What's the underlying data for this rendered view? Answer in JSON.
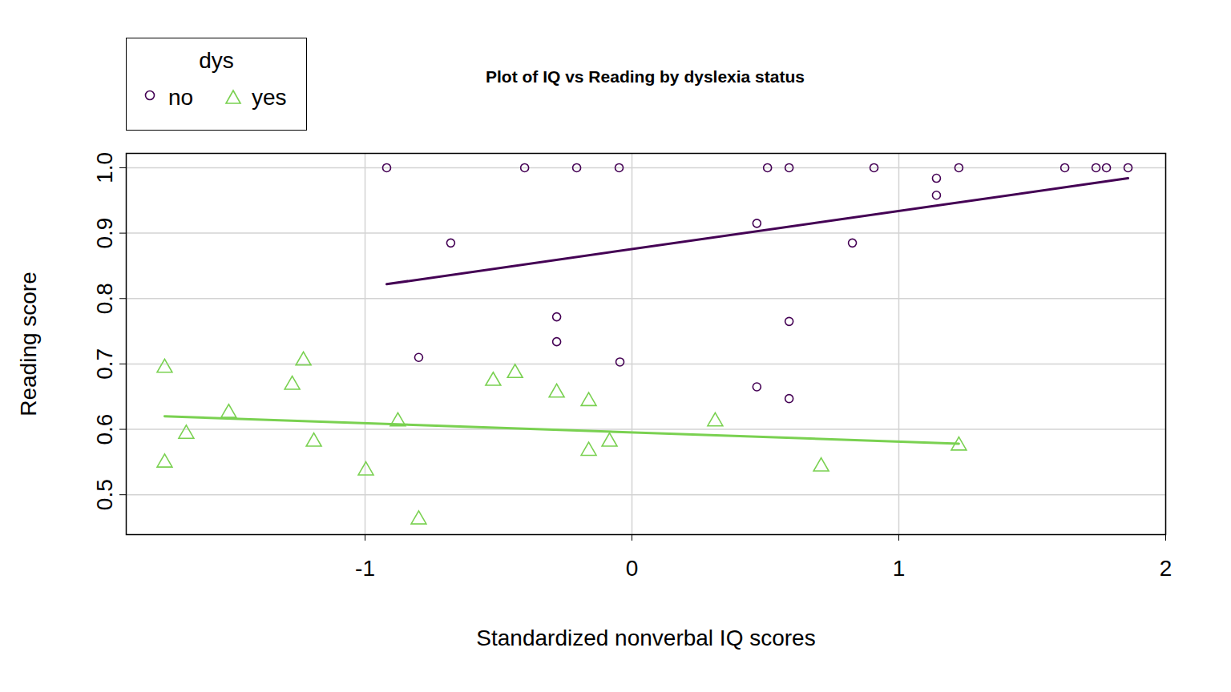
{
  "chart_data": {
    "type": "scatter",
    "title": "Plot of IQ vs Reading by dyslexia status",
    "x_label": "Standardized nonverbal IQ scores",
    "y_label": "Reading score",
    "xlim": [
      -1.895,
      2.0
    ],
    "ylim": [
      0.439,
      1.022
    ],
    "xticks": [
      -1,
      0,
      1,
      2
    ],
    "yticks": [
      0.5,
      0.6,
      0.7,
      0.8,
      0.9,
      {
        "value": 1,
        "label": "1.0"
      }
    ],
    "grid": true,
    "legend": "top-left",
    "legend_title": "dys",
    "series": [
      {
        "name": "no",
        "color": "#440154",
        "marker": "circle",
        "x": [
          -0.919,
          -0.679,
          -0.402,
          -0.207,
          -0.048,
          -0.799,
          -0.282,
          -0.282,
          -0.045,
          0.468,
          0.508,
          0.589,
          0.468,
          0.589,
          0.589,
          0.826,
          0.907,
          1.141,
          1.141,
          1.225,
          1.622,
          1.739,
          1.778,
          1.859
        ],
        "values": [
          1.0,
          0.885,
          1.0,
          1.0,
          1.0,
          0.71,
          0.772,
          0.734,
          0.703,
          0.915,
          1.0,
          1.0,
          0.665,
          0.765,
          0.647,
          0.885,
          1.0,
          0.984,
          0.958,
          1.0,
          1.0,
          1.0,
          1.0,
          1.0
        ],
        "fit": {
          "x": [
            -0.919,
            1.859
          ],
          "values": [
            0.822,
            0.984
          ]
        }
      },
      {
        "name": "yes",
        "color": "#7AD151",
        "marker": "triangle",
        "x": [
          -1.751,
          -1.751,
          -1.67,
          -1.511,
          -1.273,
          -1.231,
          -1.192,
          -0.997,
          -0.877,
          -0.799,
          -0.52,
          -0.438,
          -0.282,
          -0.162,
          -0.162,
          -0.084,
          0.312,
          0.709,
          1.225
        ],
        "values": [
          0.694,
          0.549,
          0.593,
          0.625,
          0.668,
          0.705,
          0.581,
          0.537,
          0.612,
          0.462,
          0.674,
          0.686,
          0.656,
          0.643,
          0.567,
          0.581,
          0.612,
          0.543,
          0.575
        ],
        "fit": {
          "x": [
            -1.751,
            1.225
          ],
          "values": [
            0.62,
            0.578
          ]
        }
      }
    ]
  }
}
